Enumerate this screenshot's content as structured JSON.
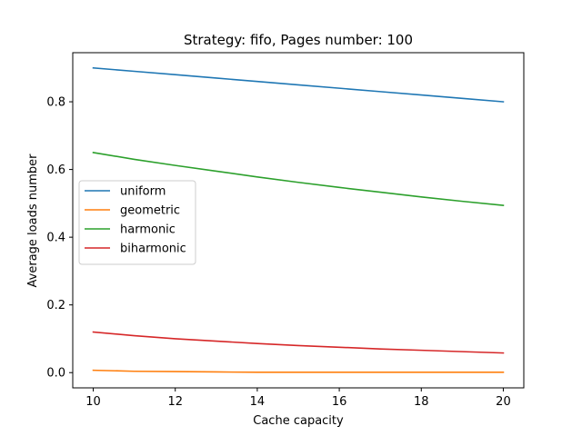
{
  "chart_data": {
    "type": "line",
    "title": "Strategy: fifo, Pages number: 100",
    "xlabel": "Cache capacity",
    "ylabel": "Average loads number",
    "xlim": [
      9.5,
      20.5
    ],
    "ylim": [
      -0.045,
      0.945
    ],
    "xticks": [
      10,
      12,
      14,
      16,
      18,
      20
    ],
    "yticks": [
      0.0,
      0.2,
      0.4,
      0.6,
      0.8
    ],
    "ytick_labels": [
      "0.0",
      "0.2",
      "0.4",
      "0.6",
      "0.8"
    ],
    "grid": false,
    "legend_position": "center-left",
    "x": [
      10,
      11,
      12,
      13,
      14,
      15,
      16,
      17,
      18,
      19,
      20
    ],
    "series": [
      {
        "name": "uniform",
        "color": "#1f77b4",
        "values": [
          0.9,
          0.89,
          0.88,
          0.87,
          0.86,
          0.85,
          0.84,
          0.83,
          0.82,
          0.81,
          0.8
        ]
      },
      {
        "name": "geometric",
        "color": "#ff7f0e",
        "values": [
          0.007,
          0.004,
          0.003,
          0.002,
          0.001,
          0.001,
          0.001,
          0.001,
          0.001,
          0.001,
          0.001
        ]
      },
      {
        "name": "harmonic",
        "color": "#2ca02c",
        "values": [
          0.65,
          0.63,
          0.612,
          0.595,
          0.578,
          0.562,
          0.547,
          0.533,
          0.519,
          0.506,
          0.494
        ]
      },
      {
        "name": "biharmonic",
        "color": "#d62728",
        "values": [
          0.12,
          0.109,
          0.1,
          0.093,
          0.086,
          0.08,
          0.075,
          0.07,
          0.066,
          0.062,
          0.058
        ]
      }
    ]
  }
}
